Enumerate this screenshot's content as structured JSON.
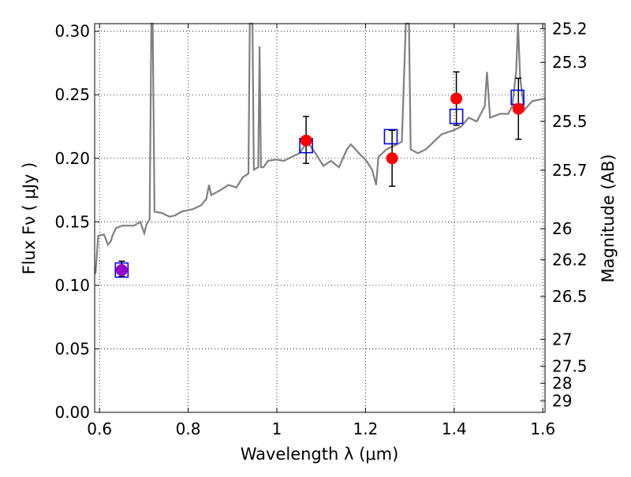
{
  "chart_data": {
    "type": "line",
    "title": "",
    "xlabel": "Wavelength  λ (μm)",
    "ylabel": "Flux  Fν  ( μJy )",
    "ylabel_right": "Magnitude (AB)",
    "xlim": [
      0.589,
      1.605
    ],
    "ylim": [
      0.0,
      0.306
    ],
    "grid": true,
    "x_ticks": [
      0.6,
      0.8,
      1.0,
      1.2,
      1.4,
      1.6
    ],
    "x_tick_labels": [
      "0.6",
      "0.8",
      "1",
      "1.2",
      "1.4",
      "1.6"
    ],
    "y_ticks": [
      0.0,
      0.05,
      0.1,
      0.15,
      0.2,
      0.25,
      0.3
    ],
    "y_tick_labels": [
      "0.00",
      "0.05",
      "0.10",
      "0.15",
      "0.20",
      "0.25",
      "0.30"
    ],
    "right_ticks": [
      "25.2",
      "25.3",
      "25.5",
      "25.7",
      "26",
      "26.2",
      "26.5",
      "27",
      "27.5",
      "28",
      "29"
    ],
    "colors": {
      "spectrum": "#808080",
      "observed": "#ff0000",
      "model": "#0000ff",
      "purple": "#9900cc"
    },
    "series": [
      {
        "name": "spectrum",
        "type": "line",
        "x": [
          0.591,
          0.597,
          0.61,
          0.619,
          0.626,
          0.629,
          0.637,
          0.651,
          0.678,
          0.692,
          0.701,
          0.706,
          0.713,
          0.717,
          0.72,
          0.724,
          0.74,
          0.758,
          0.77,
          0.785,
          0.811,
          0.829,
          0.841,
          0.847,
          0.852,
          0.873,
          0.891,
          0.909,
          0.923,
          0.936,
          0.939,
          0.945,
          0.948,
          0.958,
          0.961,
          0.964,
          0.97,
          0.98,
          0.998,
          1.016,
          1.033,
          1.051,
          1.069,
          1.087,
          1.105,
          1.122,
          1.14,
          1.158,
          1.167,
          1.185,
          1.202,
          1.215,
          1.224,
          1.229,
          1.247,
          1.265,
          1.282,
          1.291,
          1.298,
          1.302,
          1.318,
          1.336,
          1.354,
          1.372,
          1.398,
          1.416,
          1.433,
          1.451,
          1.469,
          1.474,
          1.481,
          1.504,
          1.522,
          1.531,
          1.54,
          1.544,
          1.549,
          1.558,
          1.576,
          1.604
        ],
        "y": [
          0.109,
          0.139,
          0.14,
          0.132,
          0.135,
          0.139,
          0.145,
          0.147,
          0.147,
          0.15,
          0.141,
          0.148,
          0.152,
          0.306,
          0.306,
          0.158,
          0.157,
          0.154,
          0.155,
          0.158,
          0.16,
          0.163,
          0.168,
          0.179,
          0.171,
          0.175,
          0.179,
          0.177,
          0.185,
          0.188,
          0.306,
          0.306,
          0.191,
          0.193,
          0.288,
          0.193,
          0.193,
          0.198,
          0.199,
          0.198,
          0.201,
          0.204,
          0.213,
          0.204,
          0.194,
          0.198,
          0.193,
          0.207,
          0.211,
          0.204,
          0.198,
          0.191,
          0.179,
          0.201,
          0.207,
          0.21,
          0.213,
          0.306,
          0.306,
          0.207,
          0.204,
          0.207,
          0.213,
          0.219,
          0.222,
          0.225,
          0.232,
          0.229,
          0.241,
          0.268,
          0.232,
          0.235,
          0.235,
          0.241,
          0.269,
          0.306,
          0.263,
          0.238,
          0.245,
          0.247
        ]
      },
      {
        "name": "observed",
        "type": "scatter",
        "x": [
          1.066,
          1.26,
          1.405,
          1.545
        ],
        "y": [
          0.214,
          0.2,
          0.247,
          0.239
        ],
        "yerr_low": [
          0.196,
          0.178,
          0.226,
          0.215
        ],
        "yerr_high": [
          0.233,
          0.222,
          0.268,
          0.263
        ]
      },
      {
        "name": "observed-optical",
        "type": "scatter",
        "x": [
          0.65
        ],
        "y": [
          0.112
        ],
        "yerr_low": [
          0.107
        ],
        "yerr_high": [
          0.119
        ]
      },
      {
        "name": "model-bandpass",
        "type": "scatter-square",
        "x": [
          0.65,
          1.066,
          1.257,
          1.405,
          1.543
        ],
        "y": [
          0.112,
          0.21,
          0.217,
          0.233,
          0.248
        ]
      }
    ]
  }
}
